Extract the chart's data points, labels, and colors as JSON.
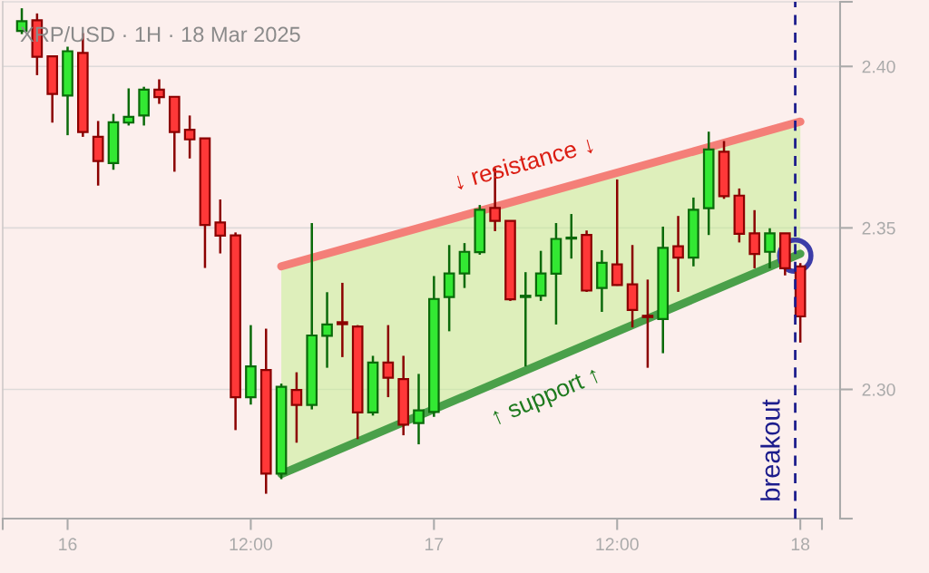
{
  "chart_data": {
    "type": "candlestick",
    "title": "XRP/USD · 1H · 18 Mar 2025",
    "x": [
      "2025-03-15T21:00",
      "2025-03-15T22:00",
      "2025-03-15T23:00",
      "2025-03-16T00:00",
      "2025-03-16T01:00",
      "2025-03-16T02:00",
      "2025-03-16T03:00",
      "2025-03-16T04:00",
      "2025-03-16T05:00",
      "2025-03-16T06:00",
      "2025-03-16T07:00",
      "2025-03-16T08:00",
      "2025-03-16T09:00",
      "2025-03-16T10:00",
      "2025-03-16T11:00",
      "2025-03-16T12:00",
      "2025-03-16T13:00",
      "2025-03-16T14:00",
      "2025-03-16T15:00",
      "2025-03-16T16:00",
      "2025-03-16T17:00",
      "2025-03-16T18:00",
      "2025-03-16T19:00",
      "2025-03-16T20:00",
      "2025-03-16T21:00",
      "2025-03-16T22:00",
      "2025-03-16T23:00",
      "2025-03-17T00:00",
      "2025-03-17T01:00",
      "2025-03-17T02:00",
      "2025-03-17T03:00",
      "2025-03-17T04:00",
      "2025-03-17T05:00",
      "2025-03-17T06:00",
      "2025-03-17T07:00",
      "2025-03-17T08:00",
      "2025-03-17T09:00",
      "2025-03-17T10:00",
      "2025-03-17T11:00",
      "2025-03-17T12:00",
      "2025-03-17T13:00",
      "2025-03-17T14:00",
      "2025-03-17T15:00",
      "2025-03-17T16:00",
      "2025-03-17T17:00",
      "2025-03-17T18:00",
      "2025-03-17T19:00",
      "2025-03-17T20:00",
      "2025-03-17T21:00",
      "2025-03-17T22:00",
      "2025-03-17T23:00",
      "2025-03-18T00:00"
    ],
    "ohlc": [
      [
        2.411,
        2.418,
        2.41,
        2.414
      ],
      [
        2.4143,
        2.4164,
        2.3973,
        2.403
      ],
      [
        2.4031,
        2.4034,
        2.3826,
        2.3915
      ],
      [
        2.391,
        2.4061,
        2.3787,
        2.4047
      ],
      [
        2.4042,
        2.4103,
        2.3782,
        2.3797
      ],
      [
        2.3782,
        2.3831,
        2.3631,
        2.3707
      ],
      [
        2.3701,
        2.3853,
        2.368,
        2.3827
      ],
      [
        2.3826,
        2.3932,
        2.3817,
        2.3844
      ],
      [
        2.3848,
        2.3937,
        2.3817,
        2.3928
      ],
      [
        2.3928,
        2.396,
        2.3884,
        2.3905
      ],
      [
        2.3906,
        2.3906,
        2.3674,
        2.3797
      ],
      [
        2.3804,
        2.3848,
        2.3715,
        2.3774
      ],
      [
        2.3777,
        2.3779,
        2.3376,
        2.3509
      ],
      [
        2.3517,
        2.3588,
        2.3421,
        2.3476
      ],
      [
        2.3477,
        2.3486,
        2.2874,
        2.2976
      ],
      [
        2.2976,
        2.3199,
        2.2953,
        2.3071
      ],
      [
        2.306,
        2.3188,
        2.2677,
        2.2739
      ],
      [
        2.2739,
        2.3018,
        2.2722,
        2.3008
      ],
      [
        2.2998,
        2.3053,
        2.2835,
        2.2952
      ],
      [
        2.2952,
        2.3515,
        2.2938,
        2.3167
      ],
      [
        2.3166,
        2.3301,
        2.3067,
        2.3201
      ],
      [
        2.3208,
        2.333,
        2.31,
        2.3202
      ],
      [
        2.3195,
        2.3199,
        2.2846,
        2.2929
      ],
      [
        2.2929,
        2.3104,
        2.2919,
        2.3083
      ],
      [
        2.3083,
        2.3199,
        2.2976,
        2.3036
      ],
      [
        2.3032,
        2.3104,
        2.2858,
        2.2891
      ],
      [
        2.2896,
        2.3048,
        2.283,
        2.2935
      ],
      [
        2.293,
        2.3351,
        2.2915,
        2.328
      ],
      [
        2.3286,
        2.3447,
        2.318,
        2.3359
      ],
      [
        2.3359,
        2.3453,
        2.3314,
        2.3426
      ],
      [
        2.3425,
        2.3571,
        2.3417,
        2.3556
      ],
      [
        2.3562,
        2.3685,
        2.349,
        2.3522
      ],
      [
        2.3522,
        2.3522,
        2.3274,
        2.3279
      ],
      [
        2.3286,
        2.3363,
        2.3071,
        2.329
      ],
      [
        2.329,
        2.3429,
        2.3274,
        2.3359
      ],
      [
        2.3358,
        2.3515,
        2.3201,
        2.3466
      ],
      [
        2.3467,
        2.3543,
        2.3405,
        2.347
      ],
      [
        2.3478,
        2.3492,
        2.3302,
        2.3306
      ],
      [
        2.3314,
        2.3431,
        2.324,
        2.3392
      ],
      [
        2.3387,
        2.365,
        2.3321,
        2.3323
      ],
      [
        2.3325,
        2.3447,
        2.3192,
        2.3246
      ],
      [
        2.3228,
        2.334,
        2.3067,
        2.3224
      ],
      [
        2.3218,
        2.3504,
        2.3112,
        2.3438
      ],
      [
        2.3443,
        2.3537,
        2.3302,
        2.3408
      ],
      [
        2.3408,
        2.3594,
        2.3381,
        2.3556
      ],
      [
        2.3561,
        2.3798,
        2.3478,
        2.3743
      ],
      [
        2.3736,
        2.3769,
        2.359,
        2.3598
      ],
      [
        2.36,
        2.3622,
        2.3455,
        2.3482
      ],
      [
        2.3483,
        2.3555,
        2.3375,
        2.3419
      ],
      [
        2.3426,
        2.3499,
        2.3375,
        2.3483
      ],
      [
        2.3483,
        2.3483,
        2.3353,
        2.3375
      ],
      [
        2.3381,
        2.3391,
        2.3145,
        2.3226
      ]
    ],
    "series": [
      {
        "type": "line",
        "color": "#f47f78",
        "x": [
          "2025-03-16T14:00",
          "2025-03-18T00:00"
        ],
        "values": [
          2.3381,
          2.3829
        ]
      },
      {
        "type": "line",
        "color": "#4aa04a",
        "x": [
          "2025-03-16T14:00",
          "2025-03-18T00:00"
        ],
        "values": [
          2.2738,
          2.342
        ],
        "lower": [
          2.2738,
          2.342
        ],
        "upper": [
          2.3381,
          2.3829
        ]
      },
      {
        "type": "scatter",
        "color": "#3c3ca8",
        "marker": "circle",
        "x": [
          "2025-03-17T23:40"
        ],
        "values": [
          2.3414
        ]
      }
    ],
    "ref_lines": [
      {
        "axis": "x",
        "value": "2025-03-17T23:40",
        "label": "breakout",
        "color": "#1c1c8c",
        "line_style": "dashed"
      }
    ],
    "annotations": [
      {
        "text": "↓ resistance ↓",
        "x": "2025-03-17T06:30",
        "y": 2.3598
      },
      {
        "text": "↑ support ↑",
        "x": "2025-03-17T06:30",
        "y": 2.3069
      }
    ],
    "xlim": [
      "2025-03-15T19:45",
      "2025-03-18T01:25"
    ],
    "xticks": [
      {
        "value": "2025-03-15T19:45",
        "label": null
      },
      {
        "value": "2025-03-16",
        "label": "16"
      },
      {
        "value": "2025-03-16T12:00",
        "label": "12:00"
      },
      {
        "value": "2025-03-17",
        "label": "17"
      },
      {
        "value": "2025-03-17T12:00",
        "label": "12:00"
      },
      {
        "value": "2025-03-18",
        "label": "18"
      },
      {
        "value": "2025-03-18T01:25",
        "label": null
      }
    ],
    "ylim": [
      2.26,
      2.42
    ],
    "yticks": [
      {
        "value": 2.26,
        "label": null
      },
      {
        "value": 2.3,
        "label": "2.30"
      },
      2.35,
      {
        "value": 2.4,
        "label": "2.40"
      },
      {
        "value": 2.42,
        "label": null
      }
    ],
    "grid": "y"
  }
}
